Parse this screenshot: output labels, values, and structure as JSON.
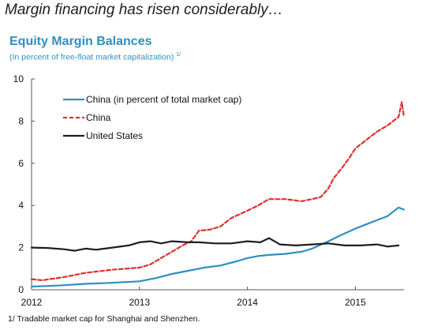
{
  "headline": "Margin financing has risen considerably…",
  "footnote": "1/ Tradable market cap for Shanghai and Shenzhen.",
  "colors": {
    "china_total": "#2f8fc0",
    "china_free": "#e03030",
    "us": "#1e1e1e",
    "title": "#2f8fc0",
    "axis": "#555555"
  },
  "chart_data": {
    "type": "line",
    "title": "Equity Margin Balances",
    "subtitle": "(In percent of free-float market capitalization)",
    "subtitle_note": "1/",
    "xlabel": "",
    "ylabel": "",
    "x_ticks": [
      "2012",
      "2013",
      "2014",
      "2015"
    ],
    "xlim": [
      2012.0,
      2015.45
    ],
    "ylim": [
      0,
      10
    ],
    "y_ticks": [
      0,
      2,
      4,
      6,
      8,
      10
    ],
    "grid": false,
    "legend_position": "top-left",
    "series": [
      {
        "name": "China (in percent of total market cap)",
        "color": "#2f8fc0",
        "style": "solid",
        "x": [
          2012.0,
          2012.25,
          2012.5,
          2012.75,
          2013.0,
          2013.15,
          2013.3,
          2013.45,
          2013.6,
          2013.75,
          2013.9,
          2014.0,
          2014.1,
          2014.2,
          2014.35,
          2014.5,
          2014.6,
          2014.75,
          2014.85,
          2015.0,
          2015.1,
          2015.2,
          2015.3,
          2015.35,
          2015.4,
          2015.45
        ],
        "y": [
          0.15,
          0.2,
          0.28,
          0.33,
          0.4,
          0.55,
          0.75,
          0.9,
          1.05,
          1.15,
          1.35,
          1.5,
          1.6,
          1.65,
          1.7,
          1.8,
          1.95,
          2.3,
          2.55,
          2.9,
          3.1,
          3.3,
          3.5,
          3.7,
          3.9,
          3.8
        ]
      },
      {
        "name": "China",
        "color": "#e03030",
        "style": "dashed",
        "x": [
          2012.0,
          2012.1,
          2012.3,
          2012.5,
          2012.75,
          2013.0,
          2013.1,
          2013.2,
          2013.3,
          2013.4,
          2013.48,
          2013.55,
          2013.65,
          2013.75,
          2013.85,
          2014.0,
          2014.1,
          2014.2,
          2014.35,
          2014.5,
          2014.6,
          2014.68,
          2014.75,
          2014.8,
          2014.88,
          2014.95,
          2015.0,
          2015.1,
          2015.2,
          2015.3,
          2015.35,
          2015.4,
          2015.43,
          2015.45
        ],
        "y": [
          0.5,
          0.45,
          0.6,
          0.8,
          0.95,
          1.05,
          1.2,
          1.5,
          1.8,
          2.1,
          2.3,
          2.8,
          2.85,
          3.0,
          3.4,
          3.75,
          4.0,
          4.3,
          4.3,
          4.2,
          4.3,
          4.4,
          4.8,
          5.3,
          5.8,
          6.3,
          6.7,
          7.1,
          7.5,
          7.8,
          8.0,
          8.2,
          8.9,
          8.2
        ]
      },
      {
        "name": "United States",
        "color": "#1e1e1e",
        "style": "solid",
        "x": [
          2012.0,
          2012.15,
          2012.3,
          2012.4,
          2012.5,
          2012.6,
          2012.75,
          2012.9,
          2013.0,
          2013.1,
          2013.2,
          2013.3,
          2013.45,
          2013.55,
          2013.7,
          2013.85,
          2014.0,
          2014.12,
          2014.2,
          2014.3,
          2014.45,
          2014.6,
          2014.75,
          2014.9,
          2015.05,
          2015.2,
          2015.3,
          2015.4
        ],
        "y": [
          2.0,
          1.98,
          1.92,
          1.85,
          1.95,
          1.9,
          2.0,
          2.1,
          2.25,
          2.3,
          2.2,
          2.3,
          2.25,
          2.25,
          2.2,
          2.2,
          2.3,
          2.25,
          2.45,
          2.15,
          2.1,
          2.15,
          2.2,
          2.1,
          2.1,
          2.15,
          2.05,
          2.1
        ]
      }
    ]
  }
}
